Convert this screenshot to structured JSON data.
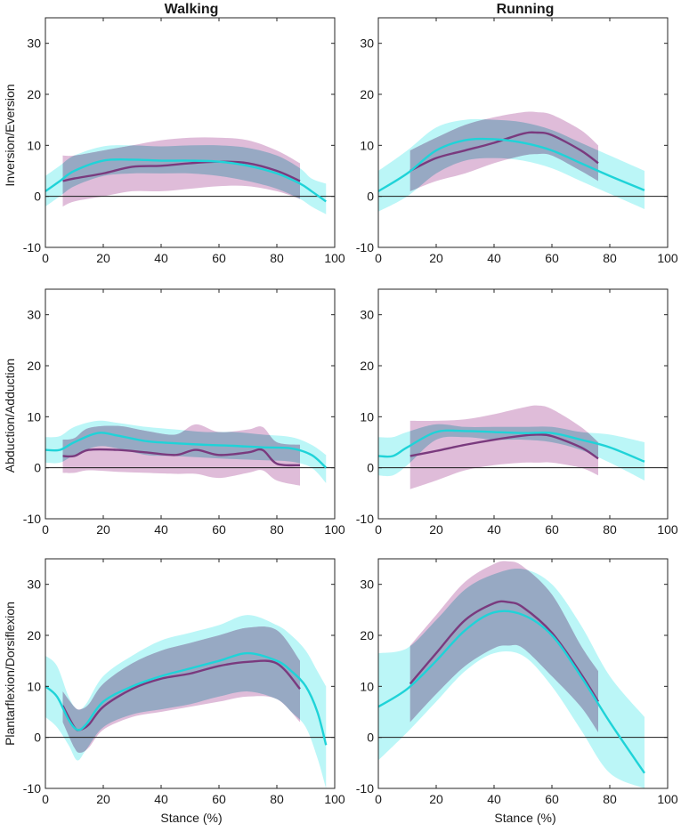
{
  "chart_data": {
    "type": "line",
    "column_titles": [
      "Walking",
      "Running"
    ],
    "row_ylabels": [
      "Inversion/Eversion",
      "Abduction/Adduction",
      "Plantarflexion/Dorsiflexion"
    ],
    "xlabel": "Stance (%)",
    "xlim": [
      0,
      100
    ],
    "ylim": [
      -10,
      35
    ],
    "xticks": [
      0,
      20,
      40,
      60,
      80,
      100
    ],
    "yticks": [
      -10,
      0,
      10,
      20,
      30
    ],
    "colors": {
      "purple_line": "#7a3a7e",
      "purple_band": "#c98fc0",
      "cyan_line": "#1fd3d8",
      "cyan_band": "#8ef0f2",
      "overlap_band": "#8fa6c0",
      "zero_line": "#1a1a1a"
    },
    "panels": [
      {
        "id": "walking-inversion-eversion",
        "col": 0,
        "row": 0,
        "series": [
          {
            "name": "cyan",
            "x": [
              0,
              5,
              10,
              20,
              30,
              40,
              50,
              60,
              70,
              80,
              88,
              92,
              97
            ],
            "mean": [
              1,
              3,
              5,
              7,
              7.2,
              7,
              7,
              6.8,
              6,
              4.5,
              2.5,
              1,
              -1
            ],
            "upper": [
              4,
              6,
              8,
              9.8,
              10,
              9.8,
              10,
              10,
              9.5,
              8,
              5.5,
              3.5,
              2.5
            ],
            "lower": [
              -2,
              0,
              2,
              4,
              4.5,
              4.5,
              4.5,
              4,
              3,
              1.5,
              -0.5,
              -2,
              -3.5
            ]
          },
          {
            "name": "purple",
            "x": [
              6,
              10,
              20,
              30,
              40,
              50,
              60,
              70,
              80,
              88
            ],
            "mean": [
              3,
              3.5,
              4.5,
              5.8,
              6,
              6.5,
              6.8,
              6.5,
              5,
              3
            ],
            "upper": [
              8,
              8,
              9,
              10,
              11,
              11.5,
              11.5,
              11,
              9,
              6.5
            ],
            "lower": [
              -2,
              -1,
              0,
              1,
              1,
              1.5,
              2,
              2,
              1,
              -0.5
            ]
          }
        ]
      },
      {
        "id": "running-inversion-eversion",
        "col": 1,
        "row": 0,
        "series": [
          {
            "name": "cyan",
            "x": [
              0,
              10,
              20,
              30,
              40,
              50,
              60,
              70,
              80,
              92
            ],
            "mean": [
              1,
              4.5,
              9,
              11,
              11.2,
              10.5,
              9,
              6.5,
              4,
              1.2
            ],
            "upper": [
              5,
              9,
              13.5,
              15,
              15,
              14.5,
              13,
              10.5,
              8,
              5
            ],
            "lower": [
              -3,
              0,
              4.5,
              7,
              7.5,
              7,
              5.5,
              3,
              0.5,
              -2.5
            ]
          },
          {
            "name": "purple",
            "x": [
              11,
              20,
              30,
              40,
              50,
              55,
              60,
              70,
              76
            ],
            "mean": [
              5,
              7.5,
              9,
              10.5,
              12.3,
              12.5,
              12,
              9,
              6.5
            ],
            "upper": [
              9,
              11.5,
              14,
              15.5,
              16.5,
              16.5,
              16,
              13,
              10
            ],
            "lower": [
              1,
              3,
              4.5,
              6.5,
              8,
              8.3,
              8,
              5,
              3
            ]
          }
        ]
      },
      {
        "id": "walking-abduction-adduction",
        "col": 0,
        "row": 1,
        "series": [
          {
            "name": "cyan",
            "x": [
              0,
              5,
              10,
              18,
              25,
              35,
              45,
              55,
              65,
              75,
              85,
              92,
              97
            ],
            "mean": [
              3.5,
              3.5,
              5,
              6.8,
              6.3,
              5.2,
              4.8,
              4.5,
              4.3,
              4,
              3.8,
              2.5,
              0
            ],
            "upper": [
              6,
              6.2,
              8,
              9.2,
              8.8,
              8,
              7.5,
              7,
              7,
              6.5,
              6,
              4.5,
              2.5
            ],
            "lower": [
              1,
              1,
              2.5,
              4.2,
              3.8,
              2.5,
              2.3,
              2,
              1.7,
              1.5,
              1.2,
              0,
              -3
            ]
          },
          {
            "name": "purple",
            "x": [
              6,
              10,
              15,
              25,
              35,
              45,
              52,
              60,
              70,
              75,
              80,
              88
            ],
            "mean": [
              2.3,
              2.3,
              3.5,
              3.5,
              3,
              2.5,
              3.5,
              2.5,
              3,
              3.5,
              0.8,
              0.5
            ],
            "upper": [
              5.5,
              5.8,
              7.8,
              8.2,
              7.2,
              6.5,
              8.5,
              7,
              7.5,
              8,
              5,
              4.5
            ],
            "lower": [
              -1,
              -1,
              -0.5,
              -0.8,
              -1,
              -1.2,
              -1.2,
              -2,
              -1,
              -0.5,
              -2.5,
              -3.5
            ]
          }
        ]
      },
      {
        "id": "running-abduction-adduction",
        "col": 1,
        "row": 1,
        "series": [
          {
            "name": "cyan",
            "x": [
              0,
              5,
              10,
              20,
              30,
              40,
              50,
              60,
              70,
              80,
              92
            ],
            "mean": [
              2.3,
              2.3,
              4,
              7,
              7.2,
              7,
              6.8,
              6.8,
              5.5,
              4,
              1.2
            ],
            "upper": [
              6,
              6,
              7,
              8.5,
              8,
              8,
              8,
              8,
              7,
              6.5,
              5
            ],
            "lower": [
              -1.5,
              -1.5,
              0.5,
              5.5,
              6,
              5.5,
              5.5,
              5,
              3.5,
              1,
              -2.5
            ]
          },
          {
            "name": "purple",
            "x": [
              11,
              20,
              30,
              40,
              50,
              55,
              60,
              70,
              76
            ],
            "mean": [
              2.3,
              3.3,
              4.5,
              5.5,
              6.3,
              6.5,
              6.2,
              4,
              1.8
            ],
            "upper": [
              9.2,
              9.2,
              9.5,
              10.5,
              11.8,
              12.2,
              11.5,
              8,
              5
            ],
            "lower": [
              -4.2,
              -2.5,
              -0.5,
              0.5,
              1,
              1,
              1,
              0,
              -1.5
            ]
          }
        ]
      },
      {
        "id": "walking-plantarflexion-dorsiflexion",
        "col": 0,
        "row": 2,
        "series": [
          {
            "name": "cyan",
            "x": [
              0,
              4,
              8,
              11,
              14,
              20,
              30,
              40,
              50,
              60,
              70,
              80,
              85,
              90,
              94,
              97
            ],
            "mean": [
              10,
              8,
              3.5,
              1.5,
              2.5,
              7,
              10,
              12,
              13.5,
              15,
              16.5,
              15,
              13,
              10,
              5,
              -1.5
            ],
            "upper": [
              16,
              14,
              8,
              5.5,
              6.5,
              12,
              16,
              19,
              20.5,
              22,
              24,
              22,
              20,
              17,
              13,
              10
            ],
            "lower": [
              4,
              2,
              -1.5,
              -4.5,
              -2.5,
              2,
              4.5,
              5.5,
              6.5,
              8,
              9,
              7.5,
              5,
              2,
              -4,
              -10
            ]
          },
          {
            "name": "purple",
            "x": [
              6,
              10,
              12,
              15,
              20,
              30,
              40,
              50,
              60,
              70,
              80,
              88
            ],
            "mean": [
              6.2,
              2,
              1.5,
              2.5,
              6,
              9.5,
              11.5,
              12.5,
              14,
              14.8,
              14.5,
              9.5
            ],
            "upper": [
              9,
              6,
              5.5,
              6.5,
              10.5,
              14.5,
              17,
              18.5,
              20,
              21.5,
              21,
              15
            ],
            "lower": [
              3,
              -2,
              -3,
              -2,
              1.5,
              4,
              5,
              6,
              7,
              8,
              7.5,
              3
            ]
          }
        ]
      },
      {
        "id": "running-plantarflexion-dorsiflexion",
        "col": 1,
        "row": 2,
        "series": [
          {
            "name": "cyan",
            "x": [
              0,
              10,
              20,
              30,
              40,
              50,
              60,
              70,
              80,
              92
            ],
            "mean": [
              6,
              9.5,
              15,
              21,
              24.5,
              24,
              20,
              12,
              3,
              -7
            ],
            "upper": [
              16.5,
              17.5,
              23,
              29,
              32,
              33,
              30,
              22,
              12,
              4
            ],
            "lower": [
              -4.5,
              1,
              7,
              13,
              16.5,
              16,
              10,
              1.5,
              -7,
              -10
            ]
          },
          {
            "name": "purple",
            "x": [
              11,
              20,
              30,
              40,
              45,
              50,
              60,
              70,
              76
            ],
            "mean": [
              10.5,
              16.5,
              23,
              26.3,
              26.5,
              25.5,
              20.5,
              12.5,
              7
            ],
            "upper": [
              18,
              24,
              30.5,
              34,
              34.5,
              33.5,
              28,
              18,
              13
            ],
            "lower": [
              3,
              8.5,
              14,
              17.5,
              18,
              17.5,
              12,
              6,
              1
            ]
          }
        ]
      }
    ]
  }
}
